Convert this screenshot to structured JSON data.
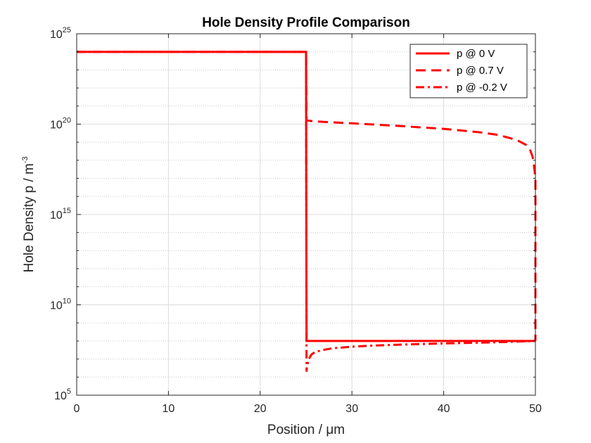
{
  "chart_data": {
    "type": "line",
    "title": "Hole Density Profile Comparison",
    "xlabel": "Position / μm",
    "ylabel_main": "Hole Density p / m",
    "ylabel_sup": "-3",
    "xlim": [
      0,
      50
    ],
    "ylim": [
      100000,
      1e+25
    ],
    "y_scale": "log",
    "grid": true,
    "legend_position": "top-right",
    "x_ticks": [
      "0",
      "10",
      "20",
      "30",
      "40",
      "50"
    ],
    "y_ticks": [
      {
        "base": "10",
        "exp": "5"
      },
      {
        "base": "10",
        "exp": "10"
      },
      {
        "base": "10",
        "exp": "15"
      },
      {
        "base": "10",
        "exp": "20"
      },
      {
        "base": "10",
        "exp": "25"
      }
    ],
    "color": "#ff0000",
    "series": [
      {
        "name": "p @ 0 V",
        "style": "solid",
        "x": [
          0,
          25,
          25.05,
          50
        ],
        "y": [
          1e+24,
          1e+24,
          100000000.0,
          100000000.0
        ]
      },
      {
        "name": "p @ 0.7 V",
        "style": "dashed",
        "x": [
          0,
          25,
          25.05,
          26,
          30,
          35,
          40,
          44,
          46,
          47,
          48,
          49,
          49.4,
          49.7,
          49.9,
          50,
          50
        ],
        "y": [
          1e+24,
          1e+24,
          1.6e+20,
          1.4e+20,
          1.1e+20,
          8e+19,
          5.5e+19,
          3.5e+19,
          2.5e+19,
          1.8e+19,
          1.3e+19,
          7e+18,
          4e+18,
          1.5e+18,
          3e+17,
          1e+17,
          100000000.0
        ]
      },
      {
        "name": "p @ -0.2 V",
        "style": "dashdot",
        "x": [
          0,
          25,
          25.05,
          25.1,
          25.3,
          25.6,
          26,
          27,
          28,
          30,
          32,
          35,
          40,
          45,
          48,
          50
        ],
        "y": [
          1e+24,
          1e+24,
          2000000.0,
          4000000.0,
          10000000.0,
          18000000.0,
          25000000.0,
          33000000.0,
          40000000.0,
          48000000.0,
          55000000.0,
          62000000.0,
          73000000.0,
          83000000.0,
          92000000.0,
          100000000.0
        ]
      }
    ]
  }
}
